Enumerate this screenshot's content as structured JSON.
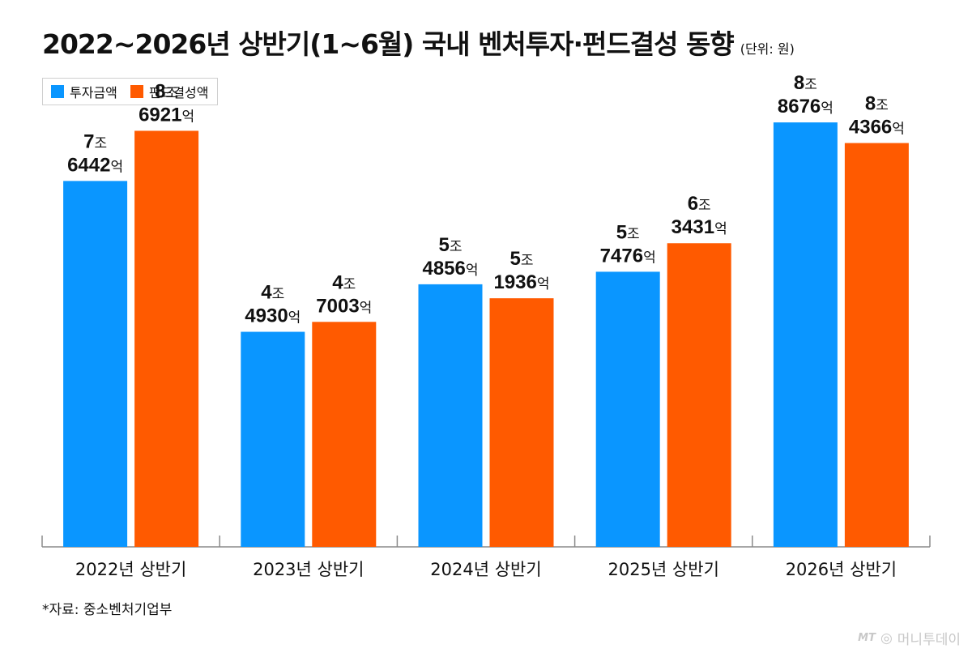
{
  "chart_data": {
    "type": "bar",
    "title": "2022~2026년 상반기(1~6월) 국내 벤처투자·펀드결성 동향",
    "unit_note": "(단위: 원)",
    "categories": [
      "2022년 상반기",
      "2023년 상반기",
      "2024년 상반기",
      "2025년 상반기",
      "2026년 상반기"
    ],
    "series": [
      {
        "name": "투자금액",
        "color": "#0a96ff",
        "values": [
          76442,
          44930,
          54856,
          57476,
          88676
        ],
        "labels": [
          {
            "top": "7조",
            "bottom": "6442억"
          },
          {
            "top": "4조",
            "bottom": "4930억"
          },
          {
            "top": "5조",
            "bottom": "4856억"
          },
          {
            "top": "5조",
            "bottom": "7476억"
          },
          {
            "top": "8조",
            "bottom": "8676억"
          }
        ]
      },
      {
        "name": "펀드결성액",
        "color": "#ff5a00",
        "values": [
          86921,
          47003,
          51936,
          63431,
          84366
        ],
        "labels": [
          {
            "top": "8조",
            "bottom": "6921억"
          },
          {
            "top": "4조",
            "bottom": "7003억"
          },
          {
            "top": "5조",
            "bottom": "1936억"
          },
          {
            "top": "6조",
            "bottom": "3431억"
          },
          {
            "top": "8조",
            "bottom": "4366억"
          }
        ]
      }
    ],
    "value_unit": "억원",
    "ylim": [
      0,
      98000
    ],
    "grid": false,
    "legend": "top-left"
  },
  "source": "*자료: 중소벤처기업부",
  "brand": {
    "mark": "MT",
    "name": "머니투데이"
  }
}
